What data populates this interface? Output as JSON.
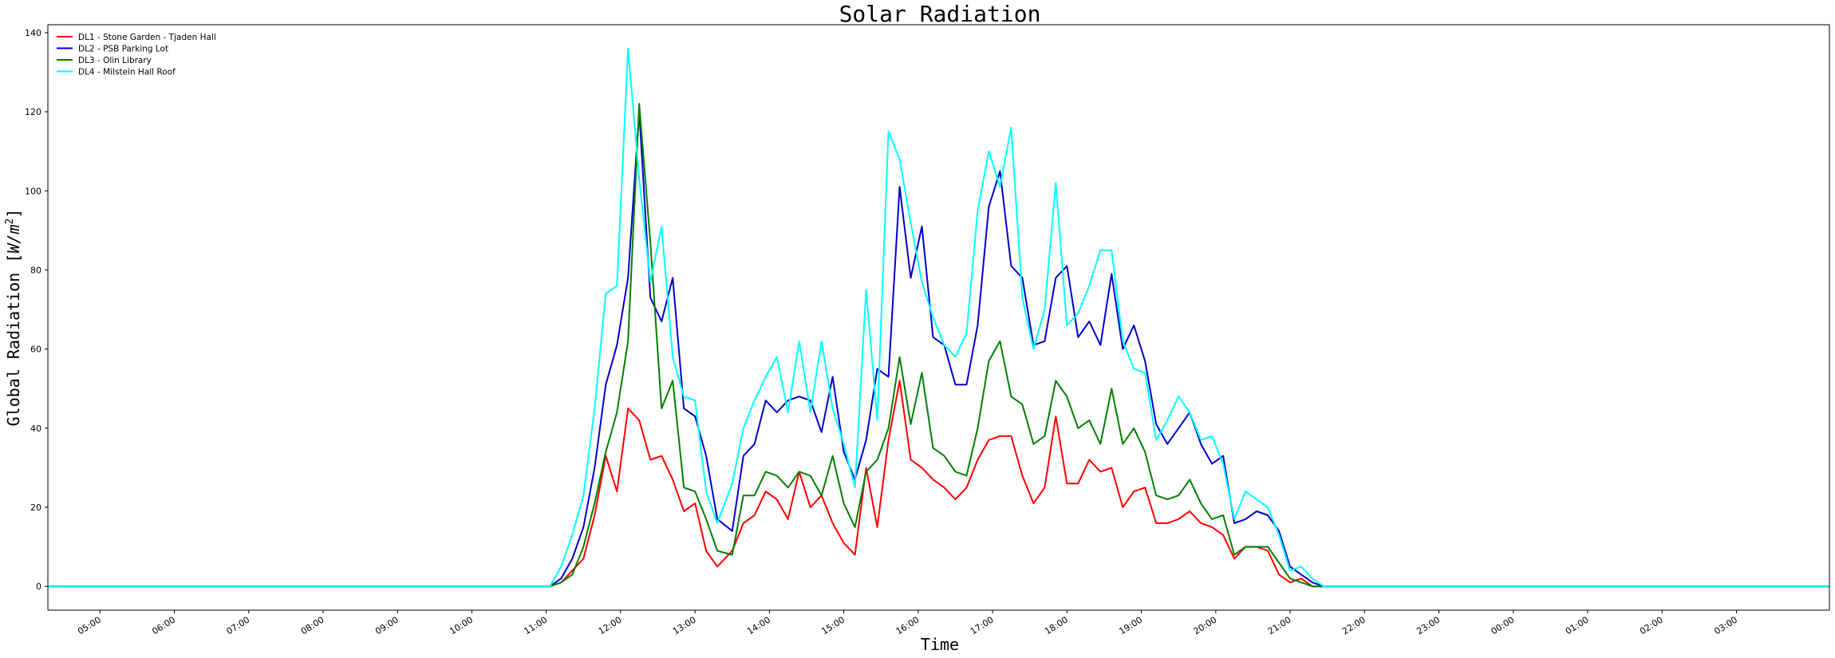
{
  "chart_data": {
    "type": "line",
    "title": "Solar Radiation",
    "xlabel": "Time",
    "ylabel": "Global Radiation [W/m²]",
    "ylabel_parts": {
      "prefix": "Global Radiation [",
      "italic": "W/m",
      "sup": "2",
      "suffix": "]"
    },
    "ylim": [
      -6,
      142
    ],
    "xlim": [
      4.3,
      28.25
    ],
    "yticks": [
      0,
      20,
      40,
      60,
      80,
      100,
      120,
      140
    ],
    "xticks": [
      {
        "label": "05:00",
        "x": 5
      },
      {
        "label": "06:00",
        "x": 6
      },
      {
        "label": "07:00",
        "x": 7
      },
      {
        "label": "08:00",
        "x": 8
      },
      {
        "label": "09:00",
        "x": 9
      },
      {
        "label": "10:00",
        "x": 10
      },
      {
        "label": "11:00",
        "x": 11
      },
      {
        "label": "12:00",
        "x": 12
      },
      {
        "label": "13:00",
        "x": 13
      },
      {
        "label": "14:00",
        "x": 14
      },
      {
        "label": "15:00",
        "x": 15
      },
      {
        "label": "16:00",
        "x": 16
      },
      {
        "label": "17:00",
        "x": 17
      },
      {
        "label": "18:00",
        "x": 18
      },
      {
        "label": "19:00",
        "x": 19
      },
      {
        "label": "20:00",
        "x": 20
      },
      {
        "label": "21:00",
        "x": 21
      },
      {
        "label": "22:00",
        "x": 22
      },
      {
        "label": "23:00",
        "x": 23
      },
      {
        "label": "00:00",
        "x": 24
      },
      {
        "label": "01:00",
        "x": 25
      },
      {
        "label": "02:00",
        "x": 26
      },
      {
        "label": "03:00",
        "x": 27
      }
    ],
    "x_is_hours": true,
    "legend_position": "top-left",
    "grid": false,
    "series": [
      {
        "name": "DL1 - Stone Garden - Tjaden Hall",
        "color": "#ff0000",
        "points": [
          [
            4.3,
            0
          ],
          [
            11.05,
            0
          ],
          [
            11.2,
            1
          ],
          [
            11.35,
            4
          ],
          [
            11.5,
            7
          ],
          [
            11.65,
            18
          ],
          [
            11.8,
            33
          ],
          [
            11.95,
            24
          ],
          [
            12.1,
            45
          ],
          [
            12.25,
            42
          ],
          [
            12.4,
            32
          ],
          [
            12.55,
            33
          ],
          [
            12.7,
            27
          ],
          [
            12.85,
            19
          ],
          [
            13.0,
            21
          ],
          [
            13.15,
            9
          ],
          [
            13.3,
            5
          ],
          [
            13.5,
            9
          ],
          [
            13.65,
            16
          ],
          [
            13.8,
            18
          ],
          [
            13.95,
            24
          ],
          [
            14.1,
            22
          ],
          [
            14.25,
            17
          ],
          [
            14.4,
            29
          ],
          [
            14.55,
            20
          ],
          [
            14.7,
            23
          ],
          [
            14.85,
            16
          ],
          [
            15.0,
            11
          ],
          [
            15.15,
            8
          ],
          [
            15.3,
            30
          ],
          [
            15.45,
            15
          ],
          [
            15.6,
            37
          ],
          [
            15.75,
            52
          ],
          [
            15.9,
            32
          ],
          [
            16.05,
            30
          ],
          [
            16.2,
            27
          ],
          [
            16.35,
            25
          ],
          [
            16.5,
            22
          ],
          [
            16.65,
            25
          ],
          [
            16.8,
            32
          ],
          [
            16.95,
            37
          ],
          [
            17.1,
            38
          ],
          [
            17.25,
            38
          ],
          [
            17.4,
            28
          ],
          [
            17.55,
            21
          ],
          [
            17.7,
            25
          ],
          [
            17.85,
            43
          ],
          [
            18.0,
            26
          ],
          [
            18.15,
            26
          ],
          [
            18.3,
            32
          ],
          [
            18.45,
            29
          ],
          [
            18.6,
            30
          ],
          [
            18.75,
            20
          ],
          [
            18.9,
            24
          ],
          [
            19.05,
            25
          ],
          [
            19.2,
            16
          ],
          [
            19.35,
            16
          ],
          [
            19.5,
            17
          ],
          [
            19.65,
            19
          ],
          [
            19.8,
            16
          ],
          [
            19.95,
            15
          ],
          [
            20.1,
            13
          ],
          [
            20.25,
            7
          ],
          [
            20.4,
            10
          ],
          [
            20.55,
            10
          ],
          [
            20.7,
            9
          ],
          [
            20.85,
            3
          ],
          [
            21.0,
            1
          ],
          [
            21.15,
            2
          ],
          [
            21.3,
            0
          ],
          [
            28.25,
            0
          ]
        ]
      },
      {
        "name": "DL2 - PSB Parking Lot",
        "color": "#0000cc",
        "points": [
          [
            4.3,
            0
          ],
          [
            11.05,
            0
          ],
          [
            11.2,
            2
          ],
          [
            11.35,
            7
          ],
          [
            11.5,
            15
          ],
          [
            11.65,
            30
          ],
          [
            11.8,
            51
          ],
          [
            11.95,
            61
          ],
          [
            12.1,
            78
          ],
          [
            12.25,
            120
          ],
          [
            12.4,
            73
          ],
          [
            12.55,
            67
          ],
          [
            12.7,
            78
          ],
          [
            12.85,
            45
          ],
          [
            13.0,
            43
          ],
          [
            13.15,
            33
          ],
          [
            13.3,
            17
          ],
          [
            13.5,
            14
          ],
          [
            13.65,
            33
          ],
          [
            13.8,
            36
          ],
          [
            13.95,
            47
          ],
          [
            14.1,
            44
          ],
          [
            14.25,
            47
          ],
          [
            14.4,
            48
          ],
          [
            14.55,
            47
          ],
          [
            14.7,
            39
          ],
          [
            14.85,
            53
          ],
          [
            15.0,
            34
          ],
          [
            15.15,
            27
          ],
          [
            15.3,
            37
          ],
          [
            15.45,
            55
          ],
          [
            15.6,
            53
          ],
          [
            15.75,
            101
          ],
          [
            15.9,
            78
          ],
          [
            16.05,
            91
          ],
          [
            16.2,
            63
          ],
          [
            16.35,
            61
          ],
          [
            16.5,
            51
          ],
          [
            16.65,
            51
          ],
          [
            16.8,
            66
          ],
          [
            16.95,
            96
          ],
          [
            17.1,
            105
          ],
          [
            17.25,
            81
          ],
          [
            17.4,
            78
          ],
          [
            17.55,
            61
          ],
          [
            17.7,
            62
          ],
          [
            17.85,
            78
          ],
          [
            18.0,
            81
          ],
          [
            18.15,
            63
          ],
          [
            18.3,
            67
          ],
          [
            18.45,
            61
          ],
          [
            18.6,
            79
          ],
          [
            18.75,
            60
          ],
          [
            18.9,
            66
          ],
          [
            19.05,
            57
          ],
          [
            19.2,
            41
          ],
          [
            19.35,
            36
          ],
          [
            19.5,
            40
          ],
          [
            19.65,
            44
          ],
          [
            19.8,
            36
          ],
          [
            19.95,
            31
          ],
          [
            20.1,
            33
          ],
          [
            20.25,
            16
          ],
          [
            20.4,
            17
          ],
          [
            20.55,
            19
          ],
          [
            20.7,
            18
          ],
          [
            20.85,
            14
          ],
          [
            21.0,
            5
          ],
          [
            21.15,
            3
          ],
          [
            21.3,
            1
          ],
          [
            21.45,
            0
          ],
          [
            28.25,
            0
          ]
        ]
      },
      {
        "name": "DL3 - Olin Library",
        "color": "#008000",
        "points": [
          [
            4.3,
            0
          ],
          [
            11.05,
            0
          ],
          [
            11.2,
            1
          ],
          [
            11.35,
            3
          ],
          [
            11.5,
            10
          ],
          [
            11.65,
            21
          ],
          [
            11.8,
            34
          ],
          [
            11.95,
            44
          ],
          [
            12.1,
            62
          ],
          [
            12.25,
            122
          ],
          [
            12.4,
            87
          ],
          [
            12.55,
            45
          ],
          [
            12.7,
            52
          ],
          [
            12.85,
            25
          ],
          [
            13.0,
            24
          ],
          [
            13.15,
            17
          ],
          [
            13.3,
            9
          ],
          [
            13.5,
            8
          ],
          [
            13.65,
            23
          ],
          [
            13.8,
            23
          ],
          [
            13.95,
            29
          ],
          [
            14.1,
            28
          ],
          [
            14.25,
            25
          ],
          [
            14.4,
            29
          ],
          [
            14.55,
            28
          ],
          [
            14.7,
            23
          ],
          [
            14.85,
            33
          ],
          [
            15.0,
            21
          ],
          [
            15.15,
            15
          ],
          [
            15.3,
            29
          ],
          [
            15.45,
            32
          ],
          [
            15.6,
            40
          ],
          [
            15.75,
            58
          ],
          [
            15.9,
            41
          ],
          [
            16.05,
            54
          ],
          [
            16.2,
            35
          ],
          [
            16.35,
            33
          ],
          [
            16.5,
            29
          ],
          [
            16.65,
            28
          ],
          [
            16.8,
            40
          ],
          [
            16.95,
            57
          ],
          [
            17.1,
            62
          ],
          [
            17.25,
            48
          ],
          [
            17.4,
            46
          ],
          [
            17.55,
            36
          ],
          [
            17.7,
            38
          ],
          [
            17.85,
            52
          ],
          [
            18.0,
            48
          ],
          [
            18.15,
            40
          ],
          [
            18.3,
            42
          ],
          [
            18.45,
            36
          ],
          [
            18.6,
            50
          ],
          [
            18.75,
            36
          ],
          [
            18.9,
            40
          ],
          [
            19.05,
            34
          ],
          [
            19.2,
            23
          ],
          [
            19.35,
            22
          ],
          [
            19.5,
            23
          ],
          [
            19.65,
            27
          ],
          [
            19.8,
            21
          ],
          [
            19.95,
            17
          ],
          [
            20.1,
            18
          ],
          [
            20.25,
            8
          ],
          [
            20.4,
            10
          ],
          [
            20.55,
            10
          ],
          [
            20.7,
            10
          ],
          [
            20.85,
            6
          ],
          [
            21.0,
            2
          ],
          [
            21.15,
            1
          ],
          [
            21.3,
            0
          ],
          [
            28.25,
            0
          ]
        ]
      },
      {
        "name": "DL4 - Milstein Hall Roof",
        "color": "#00ffff",
        "points": [
          [
            4.3,
            0
          ],
          [
            11.05,
            0
          ],
          [
            11.2,
            5
          ],
          [
            11.35,
            13
          ],
          [
            11.5,
            23
          ],
          [
            11.65,
            45
          ],
          [
            11.8,
            74
          ],
          [
            11.95,
            76
          ],
          [
            12.1,
            136
          ],
          [
            12.25,
            103
          ],
          [
            12.4,
            77
          ],
          [
            12.55,
            91
          ],
          [
            12.7,
            58
          ],
          [
            12.85,
            48
          ],
          [
            13.0,
            47
          ],
          [
            13.15,
            24
          ],
          [
            13.3,
            16
          ],
          [
            13.5,
            26
          ],
          [
            13.65,
            40
          ],
          [
            13.8,
            47
          ],
          [
            13.95,
            53
          ],
          [
            14.1,
            58
          ],
          [
            14.25,
            44
          ],
          [
            14.4,
            62
          ],
          [
            14.55,
            44
          ],
          [
            14.7,
            62
          ],
          [
            14.85,
            45
          ],
          [
            15.0,
            36
          ],
          [
            15.15,
            25
          ],
          [
            15.3,
            75
          ],
          [
            15.45,
            42
          ],
          [
            15.6,
            115
          ],
          [
            15.75,
            108
          ],
          [
            15.9,
            92
          ],
          [
            16.05,
            77
          ],
          [
            16.2,
            68
          ],
          [
            16.35,
            61
          ],
          [
            16.5,
            58
          ],
          [
            16.65,
            64
          ],
          [
            16.8,
            95
          ],
          [
            16.95,
            110
          ],
          [
            17.1,
            101
          ],
          [
            17.25,
            116
          ],
          [
            17.4,
            73
          ],
          [
            17.55,
            60
          ],
          [
            17.7,
            70
          ],
          [
            17.85,
            102
          ],
          [
            18.0,
            66
          ],
          [
            18.15,
            69
          ],
          [
            18.3,
            76
          ],
          [
            18.45,
            85
          ],
          [
            18.6,
            85
          ],
          [
            18.75,
            62
          ],
          [
            18.9,
            55
          ],
          [
            19.05,
            54
          ],
          [
            19.2,
            37
          ],
          [
            19.35,
            42
          ],
          [
            19.5,
            48
          ],
          [
            19.65,
            44
          ],
          [
            19.8,
            37
          ],
          [
            19.95,
            38
          ],
          [
            20.1,
            31
          ],
          [
            20.25,
            17
          ],
          [
            20.4,
            24
          ],
          [
            20.55,
            22
          ],
          [
            20.7,
            20
          ],
          [
            20.85,
            13
          ],
          [
            21.0,
            4
          ],
          [
            21.15,
            5
          ],
          [
            21.3,
            2
          ],
          [
            21.45,
            0
          ],
          [
            28.25,
            0
          ]
        ]
      }
    ]
  }
}
